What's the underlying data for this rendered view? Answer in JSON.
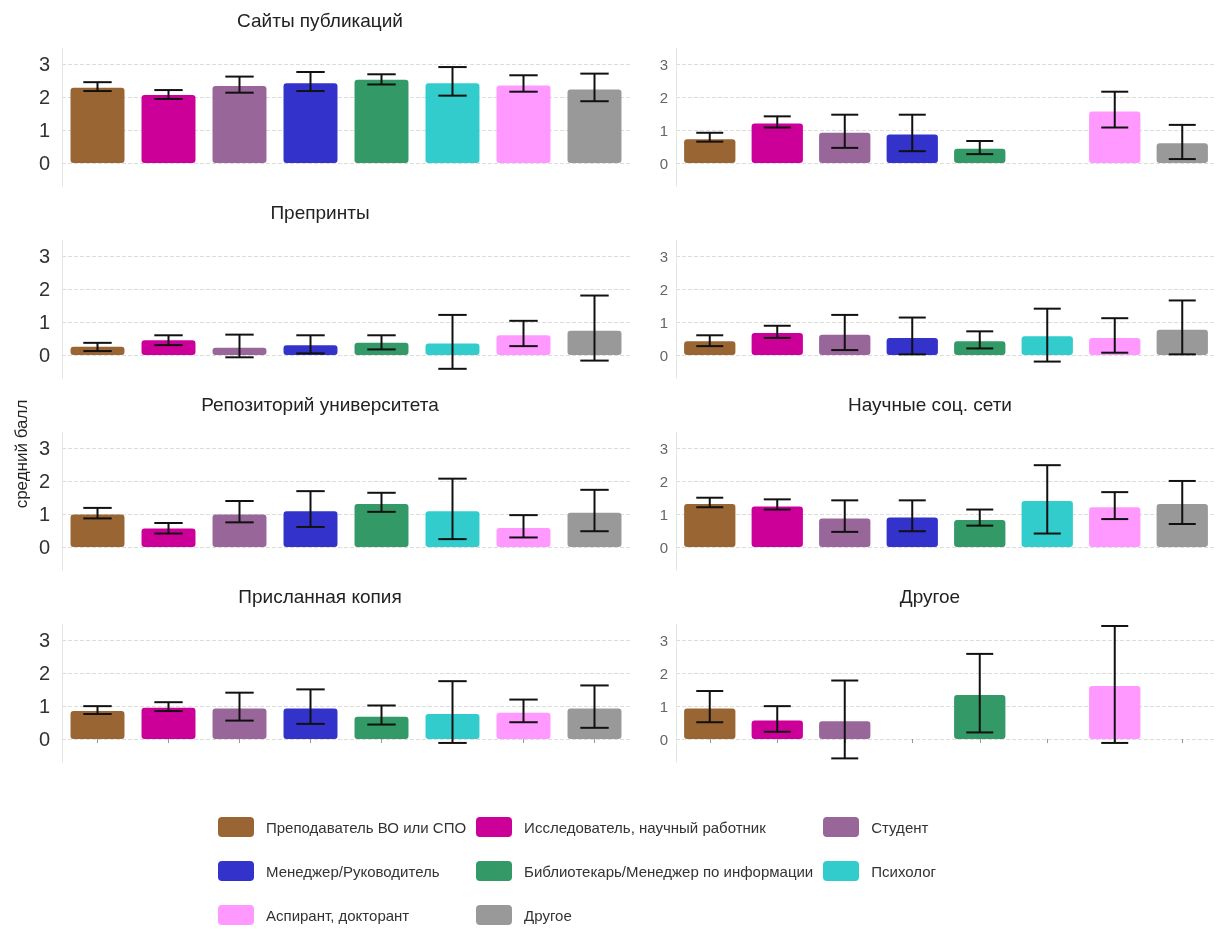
{
  "chart_data": [
    {
      "type": "bar",
      "title": "Сайты публикаций",
      "categories": [
        null
      ],
      "ylim": [
        -0.7,
        3.5
      ],
      "yticks": [
        0,
        1,
        2,
        3
      ],
      "grid": "y",
      "tick_labels": "y",
      "series": [
        {
          "color": "#996633",
          "values": [
            2.29
          ],
          "errors": [
            [
              2.19,
              2.46
            ]
          ]
        },
        {
          "color": "#cc0099",
          "values": [
            2.07
          ],
          "errors": [
            [
              1.95,
              2.22
            ]
          ]
        },
        {
          "color": "#996699",
          "values": [
            2.34
          ],
          "errors": [
            [
              2.14,
              2.63
            ]
          ]
        },
        {
          "color": "#3333cc",
          "values": [
            2.43
          ],
          "errors": [
            [
              2.19,
              2.77
            ]
          ]
        },
        {
          "color": "#339966",
          "values": [
            2.53
          ],
          "errors": [
            [
              2.39,
              2.7
            ]
          ]
        },
        {
          "color": "#33cccc",
          "values": [
            2.43
          ],
          "errors": [
            [
              2.05,
              2.92
            ]
          ]
        },
        {
          "color": "#ff99ff",
          "values": [
            2.36
          ],
          "errors": [
            [
              2.17,
              2.67
            ]
          ]
        },
        {
          "color": "#999999",
          "values": [
            2.24
          ],
          "errors": [
            [
              1.88,
              2.72
            ]
          ]
        }
      ]
    },
    {
      "type": "bar",
      "categories": [
        null
      ],
      "ylim": [
        -0.7,
        3.5
      ],
      "yticks": [
        0,
        1,
        2,
        3
      ],
      "grid": "y",
      "tick_labels": "y",
      "series": [
        {
          "color": "#996633",
          "values": [
            0.72
          ],
          "errors": [
            [
              0.65,
              0.92
            ]
          ]
        },
        {
          "color": "#cc0099",
          "values": [
            1.2
          ],
          "errors": [
            [
              1.08,
              1.42
            ]
          ]
        },
        {
          "color": "#996699",
          "values": [
            0.92
          ],
          "errors": [
            [
              0.46,
              1.47
            ]
          ]
        },
        {
          "color": "#3333cc",
          "values": [
            0.87
          ],
          "errors": [
            [
              0.36,
              1.47
            ]
          ]
        },
        {
          "color": "#339966",
          "values": [
            0.43
          ],
          "errors": [
            [
              0.27,
              0.67
            ]
          ]
        },
        {
          "color": "#33cccc",
          "values": [
            0
          ],
          "errors": [
            null
          ]
        },
        {
          "color": "#ff99ff",
          "values": [
            1.57
          ],
          "errors": [
            [
              1.08,
              2.17
            ]
          ]
        },
        {
          "color": "#999999",
          "values": [
            0.6
          ],
          "errors": [
            [
              0.12,
              1.16
            ]
          ]
        }
      ]
    },
    {
      "type": "bar",
      "title": "Препринты",
      "categories": [
        null
      ],
      "ylim": [
        -0.7,
        3.5
      ],
      "yticks": [
        0,
        1,
        2,
        3
      ],
      "grid": "y",
      "tick_labels": "y",
      "series": [
        {
          "color": "#996633",
          "values": [
            0.25
          ],
          "errors": [
            [
              0.12,
              0.37
            ]
          ]
        },
        {
          "color": "#cc0099",
          "values": [
            0.45
          ],
          "errors": [
            [
              0.3,
              0.6
            ]
          ]
        },
        {
          "color": "#996699",
          "values": [
            0.22
          ],
          "errors": [
            [
              -0.07,
              0.62
            ]
          ]
        },
        {
          "color": "#3333cc",
          "values": [
            0.3
          ],
          "errors": [
            [
              0.05,
              0.6
            ]
          ]
        },
        {
          "color": "#339966",
          "values": [
            0.37
          ],
          "errors": [
            [
              0.17,
              0.6
            ]
          ]
        },
        {
          "color": "#33cccc",
          "values": [
            0.35
          ],
          "errors": [
            [
              -0.42,
              1.22
            ]
          ]
        },
        {
          "color": "#ff99ff",
          "values": [
            0.6
          ],
          "errors": [
            [
              0.27,
              1.04
            ]
          ]
        },
        {
          "color": "#999999",
          "values": [
            0.74
          ],
          "errors": [
            [
              -0.17,
              1.81
            ]
          ]
        }
      ]
    },
    {
      "type": "bar",
      "categories": [
        null
      ],
      "ylim": [
        -0.7,
        3.5
      ],
      "yticks": [
        0,
        1,
        2,
        3
      ],
      "grid": "y",
      "tick_labels": "y",
      "series": [
        {
          "color": "#996633",
          "values": [
            0.42
          ],
          "errors": [
            [
              0.27,
              0.6
            ]
          ]
        },
        {
          "color": "#cc0099",
          "values": [
            0.67
          ],
          "errors": [
            [
              0.52,
              0.89
            ]
          ]
        },
        {
          "color": "#996699",
          "values": [
            0.62
          ],
          "errors": [
            [
              0.15,
              1.22
            ]
          ]
        },
        {
          "color": "#3333cc",
          "values": [
            0.52
          ],
          "errors": [
            [
              0.02,
              1.14
            ]
          ]
        },
        {
          "color": "#339966",
          "values": [
            0.42
          ],
          "errors": [
            [
              0.2,
              0.72
            ]
          ]
        },
        {
          "color": "#33cccc",
          "values": [
            0.57
          ],
          "errors": [
            [
              -0.2,
              1.41
            ]
          ]
        },
        {
          "color": "#ff99ff",
          "values": [
            0.52
          ],
          "errors": [
            [
              0.07,
              1.12
            ]
          ]
        },
        {
          "color": "#999999",
          "values": [
            0.77
          ],
          "errors": [
            [
              0.02,
              1.66
            ]
          ]
        }
      ]
    },
    {
      "type": "bar",
      "title": "Репозиторий университета",
      "ylabel": "средний балл",
      "categories": [
        null
      ],
      "ylim": [
        -0.7,
        3.5
      ],
      "yticks": [
        0,
        1,
        2,
        3
      ],
      "grid": "y",
      "tick_labels": "y",
      "series": [
        {
          "color": "#996633",
          "values": [
            0.99
          ],
          "errors": [
            [
              0.87,
              1.19
            ]
          ]
        },
        {
          "color": "#cc0099",
          "values": [
            0.56
          ],
          "errors": [
            [
              0.41,
              0.73
            ]
          ]
        },
        {
          "color": "#996699",
          "values": [
            0.99
          ],
          "errors": [
            [
              0.75,
              1.4
            ]
          ]
        },
        {
          "color": "#3333cc",
          "values": [
            1.09
          ],
          "errors": [
            [
              0.61,
              1.7
            ]
          ]
        },
        {
          "color": "#339966",
          "values": [
            1.31
          ],
          "errors": [
            [
              1.07,
              1.65
            ]
          ]
        },
        {
          "color": "#33cccc",
          "values": [
            1.09
          ],
          "errors": [
            [
              0.24,
              2.08
            ]
          ]
        },
        {
          "color": "#ff99ff",
          "values": [
            0.58
          ],
          "errors": [
            [
              0.29,
              0.97
            ]
          ]
        },
        {
          "color": "#999999",
          "values": [
            1.04
          ],
          "errors": [
            [
              0.48,
              1.74
            ]
          ]
        }
      ]
    },
    {
      "type": "bar",
      "title": "Научные соц. сети",
      "categories": [
        null
      ],
      "ylim": [
        -0.7,
        3.5
      ],
      "yticks": [
        0,
        1,
        2,
        3
      ],
      "grid": "y",
      "tick_labels": "y",
      "series": [
        {
          "color": "#996633",
          "values": [
            1.31
          ],
          "errors": [
            [
              1.21,
              1.5
            ]
          ]
        },
        {
          "color": "#cc0099",
          "values": [
            1.23
          ],
          "errors": [
            [
              1.14,
              1.45
            ]
          ]
        },
        {
          "color": "#996699",
          "values": [
            0.87
          ],
          "errors": [
            [
              0.46,
              1.42
            ]
          ]
        },
        {
          "color": "#3333cc",
          "values": [
            0.9
          ],
          "errors": [
            [
              0.48,
              1.42
            ]
          ]
        },
        {
          "color": "#339966",
          "values": [
            0.82
          ],
          "errors": [
            [
              0.65,
              1.14
            ]
          ]
        },
        {
          "color": "#33cccc",
          "values": [
            1.4
          ],
          "errors": [
            [
              0.41,
              2.49
            ]
          ]
        },
        {
          "color": "#ff99ff",
          "values": [
            1.21
          ],
          "errors": [
            [
              0.85,
              1.67
            ]
          ]
        },
        {
          "color": "#999999",
          "values": [
            1.31
          ],
          "errors": [
            [
              0.7,
              2.01
            ]
          ]
        }
      ]
    },
    {
      "type": "bar",
      "title": "Присланная копия",
      "categories": [
        null
      ],
      "ylim": [
        -0.7,
        3.5
      ],
      "yticks": [
        0,
        1,
        2,
        3
      ],
      "grid": "y",
      "tick_labels": "y",
      "series": [
        {
          "color": "#996633",
          "values": [
            0.85
          ],
          "errors": [
            [
              0.76,
              1.0
            ]
          ]
        },
        {
          "color": "#cc0099",
          "values": [
            0.95
          ],
          "errors": [
            [
              0.85,
              1.12
            ]
          ]
        },
        {
          "color": "#996699",
          "values": [
            0.93
          ],
          "errors": [
            [
              0.56,
              1.41
            ]
          ]
        },
        {
          "color": "#3333cc",
          "values": [
            0.93
          ],
          "errors": [
            [
              0.46,
              1.51
            ]
          ]
        },
        {
          "color": "#339966",
          "values": [
            0.68
          ],
          "errors": [
            [
              0.44,
              1.02
            ]
          ]
        },
        {
          "color": "#33cccc",
          "values": [
            0.76
          ],
          "errors": [
            [
              -0.12,
              1.76
            ]
          ]
        },
        {
          "color": "#ff99ff",
          "values": [
            0.8
          ],
          "errors": [
            [
              0.51,
              1.2
            ]
          ]
        },
        {
          "color": "#999999",
          "values": [
            0.93
          ],
          "errors": [
            [
              0.34,
              1.63
            ]
          ]
        }
      ]
    },
    {
      "type": "bar",
      "title": "Другое",
      "categories": [
        null
      ],
      "ylim": [
        -0.7,
        3.5
      ],
      "yticks": [
        0,
        1,
        2,
        3
      ],
      "grid": "y",
      "tick_labels": "y",
      "legend": "bottom",
      "series": [
        {
          "name": "Преподаватель ВО или СПО",
          "color": "#996633",
          "values": [
            0.93
          ],
          "errors": [
            [
              0.51,
              1.46
            ]
          ]
        },
        {
          "name": "Исследователь, научный работник",
          "color": "#cc0099",
          "values": [
            0.56
          ],
          "errors": [
            [
              0.22,
              1.0
            ]
          ]
        },
        {
          "name": "Студент",
          "color": "#996699",
          "values": [
            0.54
          ],
          "errors": [
            [
              -0.59,
              1.78
            ]
          ]
        },
        {
          "name": "Менеджер/Руководитель",
          "color": "#3333cc",
          "values": [
            null
          ],
          "errors": [
            null
          ]
        },
        {
          "name": "Библиотекарь/Менеджер по информации",
          "color": "#339966",
          "values": [
            1.34
          ],
          "errors": [
            [
              0.2,
              2.59
            ]
          ]
        },
        {
          "name": "Психолог",
          "color": "#33cccc",
          "values": [
            null
          ],
          "errors": [
            null
          ]
        },
        {
          "name": "Аспирант, докторант",
          "color": "#ff99ff",
          "values": [
            1.61
          ],
          "errors": [
            [
              -0.12,
              3.44
            ]
          ]
        },
        {
          "name": "Другое",
          "color": "#999999",
          "values": [
            null
          ],
          "errors": [
            null
          ]
        }
      ]
    }
  ]
}
